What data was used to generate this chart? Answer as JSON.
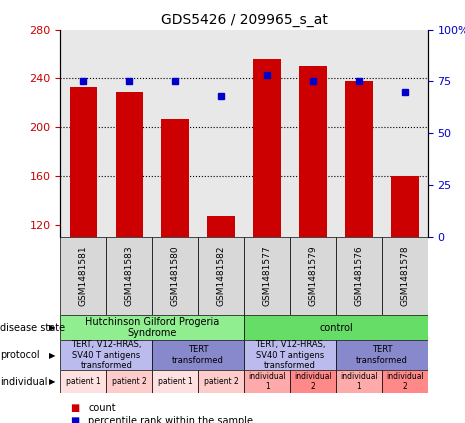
{
  "title": "GDS5426 / 209965_s_at",
  "samples": [
    "GSM1481581",
    "GSM1481583",
    "GSM1481580",
    "GSM1481582",
    "GSM1481577",
    "GSM1481579",
    "GSM1481576",
    "GSM1481578"
  ],
  "counts": [
    233,
    229,
    207,
    127,
    256,
    250,
    238,
    160
  ],
  "percentiles": [
    75,
    75,
    75,
    68,
    78,
    75,
    75,
    70
  ],
  "ylim_left": [
    110,
    280
  ],
  "ylim_right": [
    0,
    100
  ],
  "yticks_left": [
    120,
    160,
    200,
    240,
    280
  ],
  "yticks_right": [
    0,
    25,
    50,
    75,
    100
  ],
  "ytick_labels_right": [
    "0",
    "25",
    "50",
    "75",
    "100%"
  ],
  "hlines": [
    160,
    200,
    240
  ],
  "disease_state_groups": [
    {
      "label": "Hutchinson Gilford Progeria\nSyndrome",
      "start": 0,
      "end": 4,
      "color": "#90EE90"
    },
    {
      "label": "control",
      "start": 4,
      "end": 8,
      "color": "#66DD66"
    }
  ],
  "protocol_groups": [
    {
      "label": "TERT, V12-HRAS,\nSV40 T antigens\ntransformed",
      "start": 0,
      "end": 2,
      "color": "#BBBBEE"
    },
    {
      "label": "TERT\ntransformed",
      "start": 2,
      "end": 4,
      "color": "#8888CC"
    },
    {
      "label": "TERT, V12-HRAS,\nSV40 T antigens\ntransformed",
      "start": 4,
      "end": 6,
      "color": "#BBBBEE"
    },
    {
      "label": "TERT\ntransformed",
      "start": 6,
      "end": 8,
      "color": "#8888CC"
    }
  ],
  "individual_groups": [
    {
      "label": "patient 1",
      "start": 0,
      "end": 1,
      "color": "#FFE0E0"
    },
    {
      "label": "patient 2",
      "start": 1,
      "end": 2,
      "color": "#FFCCCC"
    },
    {
      "label": "patient 1",
      "start": 2,
      "end": 3,
      "color": "#FFE0E0"
    },
    {
      "label": "patient 2",
      "start": 3,
      "end": 4,
      "color": "#FFCCCC"
    },
    {
      "label": "individual\n1",
      "start": 4,
      "end": 5,
      "color": "#FFAAAA"
    },
    {
      "label": "individual\n2",
      "start": 5,
      "end": 6,
      "color": "#FF8888"
    },
    {
      "label": "individual\n1",
      "start": 6,
      "end": 7,
      "color": "#FFAAAA"
    },
    {
      "label": "individual\n2",
      "start": 7,
      "end": 8,
      "color": "#FF8888"
    }
  ],
  "bar_color": "#CC0000",
  "dot_color": "#0000CC",
  "left_tick_color": "#CC0000",
  "right_tick_color": "#0000CC",
  "row_labels": [
    "disease state",
    "protocol",
    "individual"
  ],
  "legend_items": [
    {
      "color": "#CC0000",
      "label": "count"
    },
    {
      "color": "#0000CC",
      "label": "percentile rank within the sample"
    }
  ],
  "chart_bg": "#E8E8E8",
  "sample_box_bg": "#D8D8D8"
}
